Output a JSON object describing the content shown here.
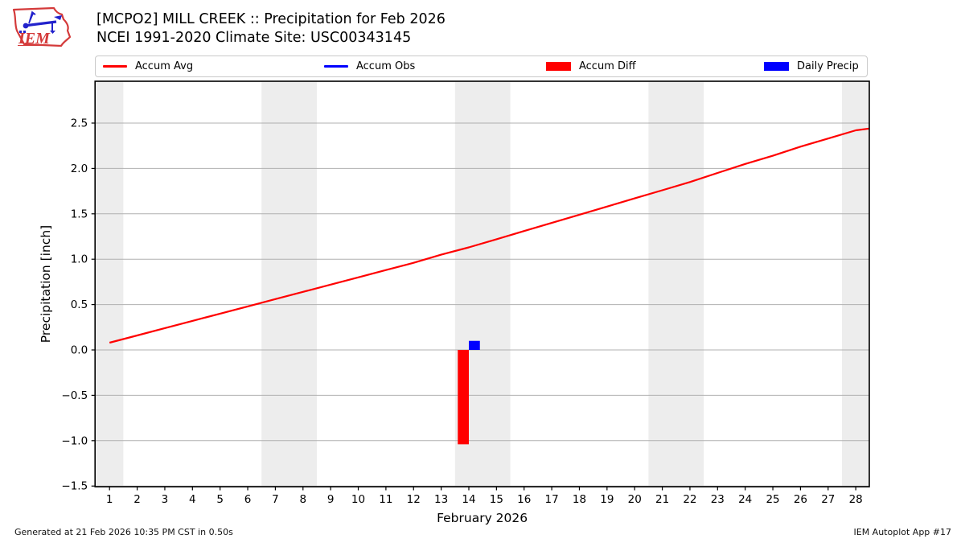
{
  "header": {
    "title_line1": "[MCPO2] MILL CREEK :: Precipitation for Feb 2026",
    "title_line2": "NCEI 1991-2020 Climate Site: USC00343145",
    "logo_text": "IEM"
  },
  "legend": {
    "items": [
      {
        "label": "Accum Avg",
        "swatch": "line",
        "color": "#ff0000"
      },
      {
        "label": "Accum Obs",
        "swatch": "line",
        "color": "#0000ff"
      },
      {
        "label": "Accum Diff",
        "swatch": "rect",
        "color": "#ff0000"
      },
      {
        "label": "Daily Precip",
        "swatch": "rect",
        "color": "#0000ff"
      }
    ]
  },
  "chart_data": {
    "type": "line+bar",
    "title": "[MCPO2] MILL CREEK :: Precipitation for Feb 2026",
    "subtitle": "NCEI 1991-2020 Climate Site: USC00343145",
    "xlabel": "February 2026",
    "ylabel": "Precipitation [inch]",
    "xlim": [
      0.476,
      28.49
    ],
    "ylim": [
      -1.507,
      2.961
    ],
    "xticks": [
      1,
      2,
      3,
      4,
      5,
      6,
      7,
      8,
      9,
      10,
      11,
      12,
      13,
      14,
      15,
      16,
      17,
      18,
      19,
      20,
      21,
      22,
      23,
      24,
      25,
      26,
      27,
      28
    ],
    "yticks": [
      {
        "v": 2.5,
        "label": "2.5"
      },
      {
        "v": 2.0,
        "label": "2.0"
      },
      {
        "v": 1.5,
        "label": "1.5"
      },
      {
        "v": 1.0,
        "label": "1.0"
      },
      {
        "v": 0.5,
        "label": "0.5"
      },
      {
        "v": 0.0,
        "label": "0.0"
      },
      {
        "v": -0.5,
        "label": "−0.5"
      },
      {
        "v": -1.0,
        "label": "−1.0"
      },
      {
        "v": -1.5,
        "label": "−1.5"
      }
    ],
    "weekend_bands": [
      [
        0.5,
        1.5
      ],
      [
        6.5,
        8.5
      ],
      [
        13.5,
        15.5
      ],
      [
        20.5,
        22.5
      ],
      [
        27.5,
        28.49
      ]
    ],
    "band_color": "#ededed",
    "grid_color": "#b0b0b0",
    "grid": "horizontal",
    "series": [
      {
        "name": "Accum Avg",
        "type": "line",
        "color": "#ff0000",
        "x": [
          1,
          2,
          3,
          4,
          5,
          6,
          7,
          8,
          9,
          10,
          11,
          12,
          13,
          14,
          15,
          16,
          17,
          18,
          19,
          20,
          21,
          22,
          23,
          24,
          25,
          26,
          27,
          28,
          28.49
        ],
        "y": [
          0.08,
          0.16,
          0.24,
          0.32,
          0.4,
          0.48,
          0.56,
          0.64,
          0.72,
          0.8,
          0.88,
          0.96,
          1.05,
          1.13,
          1.22,
          1.31,
          1.4,
          1.49,
          1.58,
          1.67,
          1.76,
          1.85,
          1.95,
          2.05,
          2.14,
          2.24,
          2.33,
          2.42,
          2.44
        ]
      },
      {
        "name": "Accum Obs",
        "type": "line",
        "color": "#0000ff",
        "x": [],
        "y": []
      },
      {
        "name": "Accum Diff",
        "type": "bar",
        "color": "#ff0000",
        "bar_width": 0.4,
        "offset": -0.2,
        "x": [
          14
        ],
        "y": [
          -1.04
        ]
      },
      {
        "name": "Daily Precip",
        "type": "bar",
        "color": "#0000ff",
        "bar_width": 0.4,
        "offset": 0.2,
        "x": [
          14
        ],
        "y": [
          0.1
        ]
      }
    ]
  },
  "footer": {
    "left": "Generated at 21 Feb 2026 10:35 PM CST in 0.50s",
    "right": "IEM Autoplot App #17"
  }
}
